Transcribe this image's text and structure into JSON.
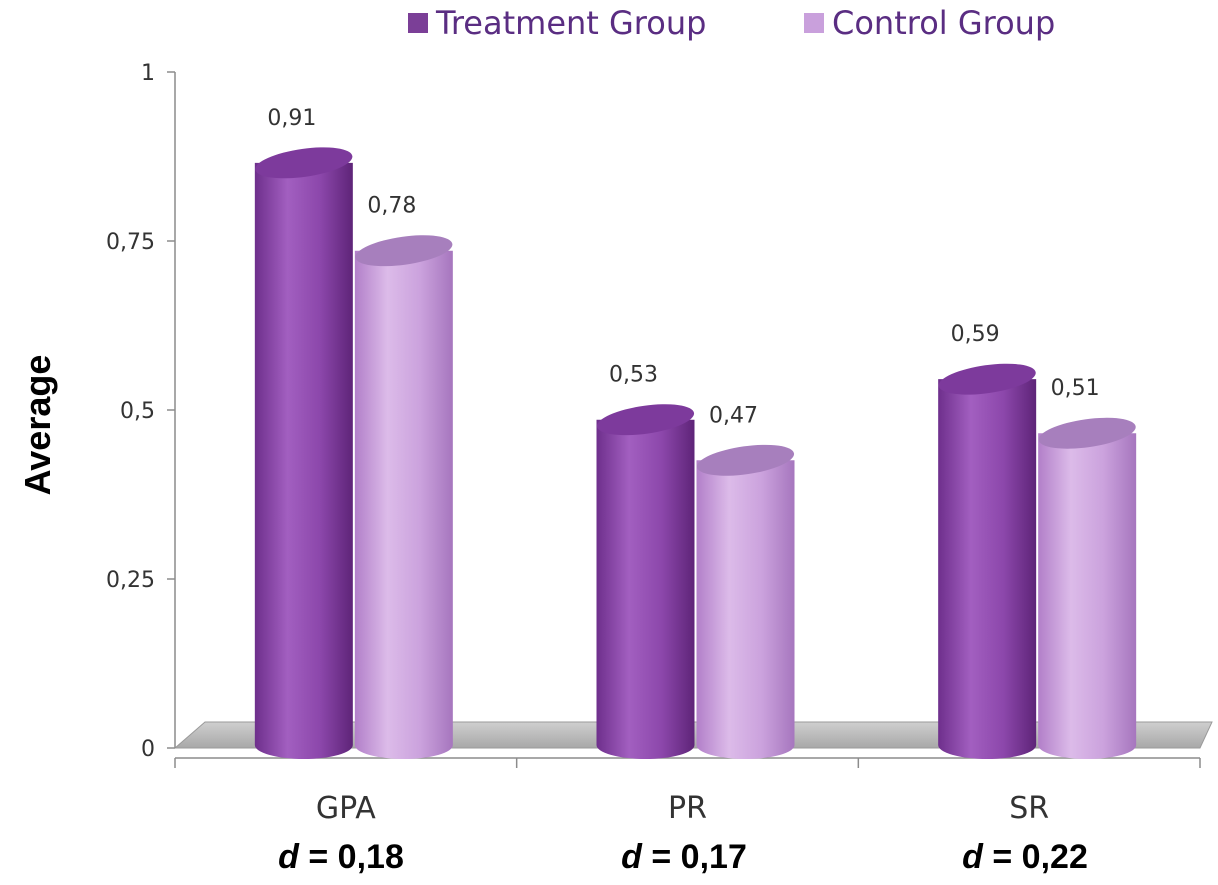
{
  "chart_data": {
    "type": "bar",
    "style": "3d-cylinder",
    "categories": [
      "GPA",
      "PR",
      "SR"
    ],
    "series": [
      {
        "name": "Treatment Group",
        "values": [
          0.91,
          0.53,
          0.59
        ],
        "value_labels": [
          "0,91",
          "0,53",
          "0,59"
        ],
        "color": "#9b59b6"
      },
      {
        "name": "Control Group",
        "values": [
          0.78,
          0.47,
          0.51
        ],
        "value_labels": [
          "0,78",
          "0,47",
          "0,51"
        ],
        "color": "#c9a0dc"
      }
    ],
    "ylabel": "Average",
    "ylim": [
      0,
      1
    ],
    "yticks": [
      0,
      0.25,
      0.5,
      0.75,
      1
    ],
    "ytick_labels": [
      "0",
      "0,25",
      "0,5",
      "0,75",
      "1"
    ],
    "legend": "top",
    "grid": false,
    "annotations": [
      {
        "prefix": "d",
        "text": " = 0,18"
      },
      {
        "prefix": "d",
        "text": " = 0,17"
      },
      {
        "prefix": "d",
        "text": " = 0,22"
      }
    ]
  }
}
